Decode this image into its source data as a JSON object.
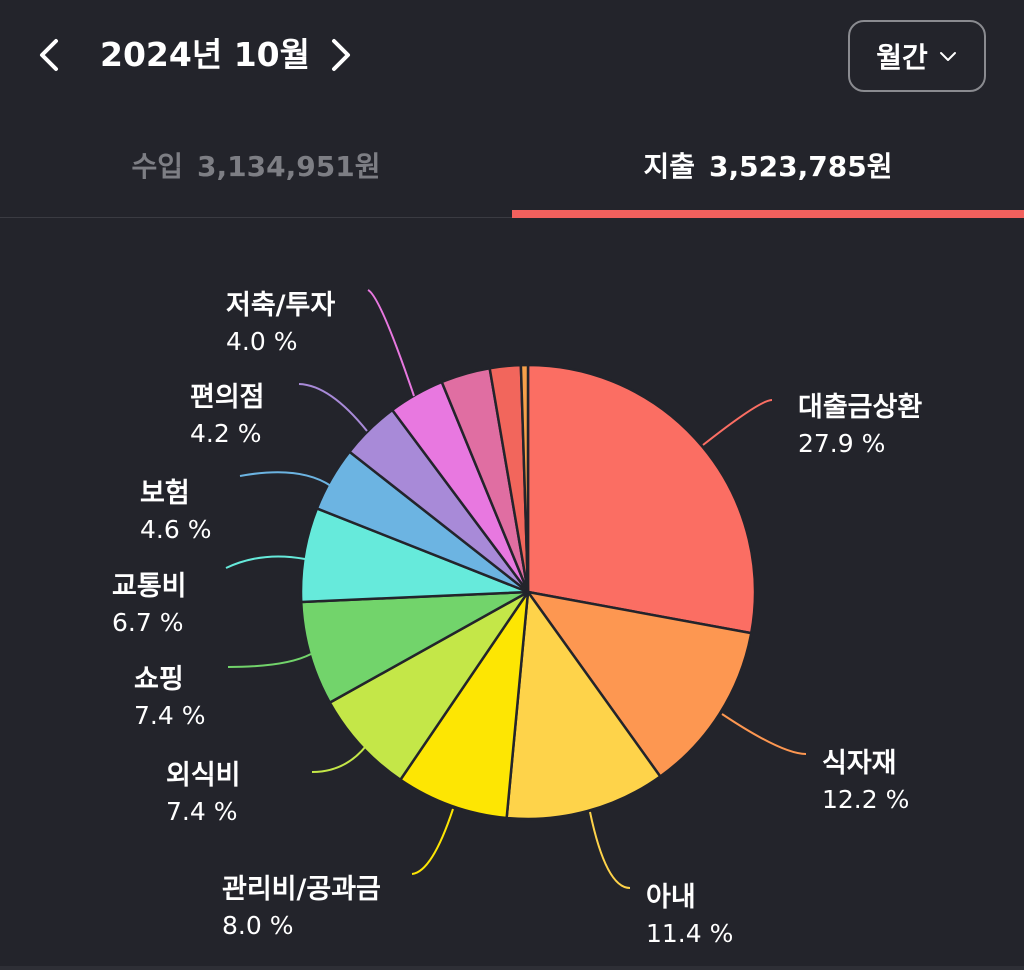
{
  "header": {
    "month_title": "2024년 10월",
    "period_label": "월간",
    "prev_icon": "chevron-left-icon",
    "next_icon": "chevron-right-icon",
    "dropdown_icon": "chevron-down-icon"
  },
  "tabs": [
    {
      "label": "수입",
      "amount": "3,134,951원",
      "active": false
    },
    {
      "label": "지출",
      "amount": "3,523,785원",
      "active": true
    }
  ],
  "colors": {
    "background": "#23242b",
    "active_tab_underline": "#f2605d",
    "inactive_tab_text": "#7d7e84"
  },
  "chart_data": {
    "type": "pie",
    "start_angle_deg": 0,
    "direction": "clockwise",
    "slices": [
      {
        "label": "대출금상환",
        "value": 27.9,
        "display": "27.9 %",
        "color": "#fb6e63",
        "show_label": true
      },
      {
        "label": "식자재",
        "value": 12.2,
        "display": "12.2 %",
        "color": "#fd9751",
        "show_label": true
      },
      {
        "label": "아내",
        "value": 11.4,
        "display": "11.4 %",
        "color": "#fed34a",
        "show_label": true
      },
      {
        "label": "관리비/공과금",
        "value": 8.0,
        "display": "8.0 %",
        "color": "#fde603",
        "show_label": true
      },
      {
        "label": "외식비",
        "value": 7.4,
        "display": "7.4 %",
        "color": "#c4e748",
        "show_label": true
      },
      {
        "label": "쇼핑",
        "value": 7.4,
        "display": "7.4 %",
        "color": "#72d46b",
        "show_label": true
      },
      {
        "label": "교통비",
        "value": 6.7,
        "display": "6.7 %",
        "color": "#66eadb",
        "show_label": true
      },
      {
        "label": "보험",
        "value": 4.6,
        "display": "4.6 %",
        "color": "#6cb4e2",
        "show_label": true
      },
      {
        "label": "편의점",
        "value": 4.2,
        "display": "4.2 %",
        "color": "#a88ad8",
        "show_label": true
      },
      {
        "label": "저축/투자",
        "value": 4.0,
        "display": "4.0 %",
        "color": "#e878e0",
        "show_label": true
      },
      {
        "label": "",
        "value": 3.5,
        "display": "",
        "color": "#e06ea2",
        "show_label": false
      },
      {
        "label": "",
        "value": 2.2,
        "display": "",
        "color": "#f2665c",
        "show_label": false
      },
      {
        "label": "",
        "value": 0.5,
        "display": "",
        "color": "#f7a04a",
        "show_label": false
      }
    ]
  }
}
